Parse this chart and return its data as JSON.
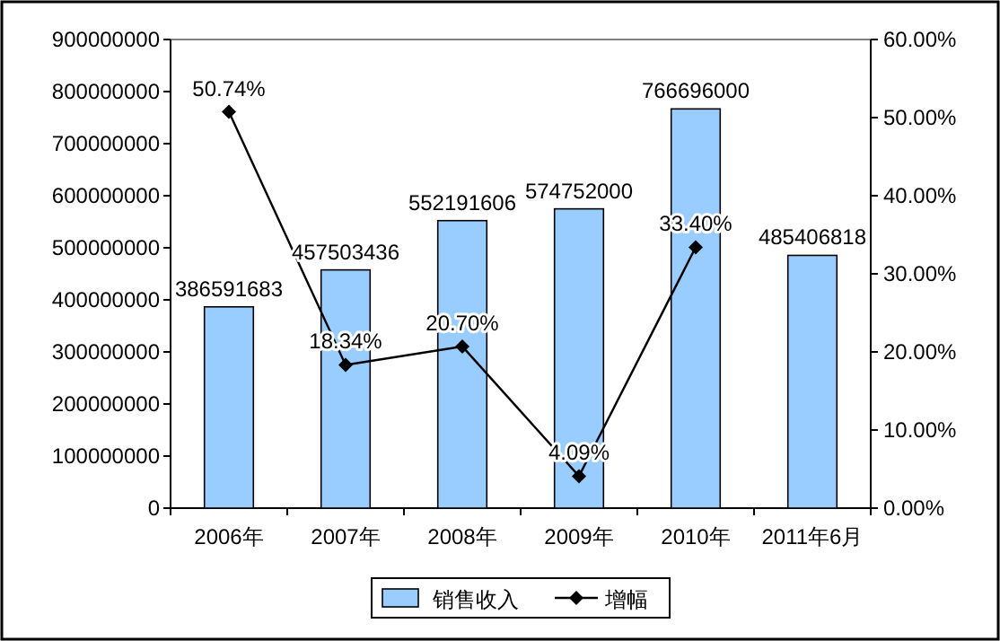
{
  "chart_data": {
    "type": "bar",
    "categories": [
      "2006年",
      "2007年",
      "2008年",
      "2009年",
      "2010年",
      "2011年6月"
    ],
    "series": [
      {
        "name": "销售收入",
        "color": "#99ccff",
        "values": [
          386591683,
          457503436,
          552191606,
          574752000,
          766696000,
          485406818
        ],
        "value_labels": [
          "386591683",
          "457503436",
          "552191606",
          "574752000",
          "766696000",
          "485406818"
        ]
      },
      {
        "name": "增幅",
        "type": "line",
        "axis": "y2",
        "color": "#000000",
        "marker": "diamond",
        "values": [
          50.74,
          18.34,
          20.7,
          4.09,
          33.4,
          null
        ],
        "value_labels": [
          "50.74%",
          "18.34%",
          "20.70%",
          "4.09%",
          "33.40%",
          null
        ]
      }
    ],
    "ylim": [
      0,
      900000000
    ],
    "yticks": [
      0,
      100000000,
      200000000,
      300000000,
      400000000,
      500000000,
      600000000,
      700000000,
      800000000,
      900000000
    ],
    "y2lim": [
      0,
      60
    ],
    "y2ticks": [
      {
        "value": 0,
        "label": "0.00%"
      },
      {
        "value": 10,
        "label": "10.00%"
      },
      {
        "value": 20,
        "label": "20.00%"
      },
      {
        "value": 30,
        "label": "30.00%"
      },
      {
        "value": 40,
        "label": "40.00%"
      },
      {
        "value": 50,
        "label": "50.00%"
      },
      {
        "value": 60,
        "label": "60.00%"
      }
    ],
    "legend": "bottom"
  }
}
